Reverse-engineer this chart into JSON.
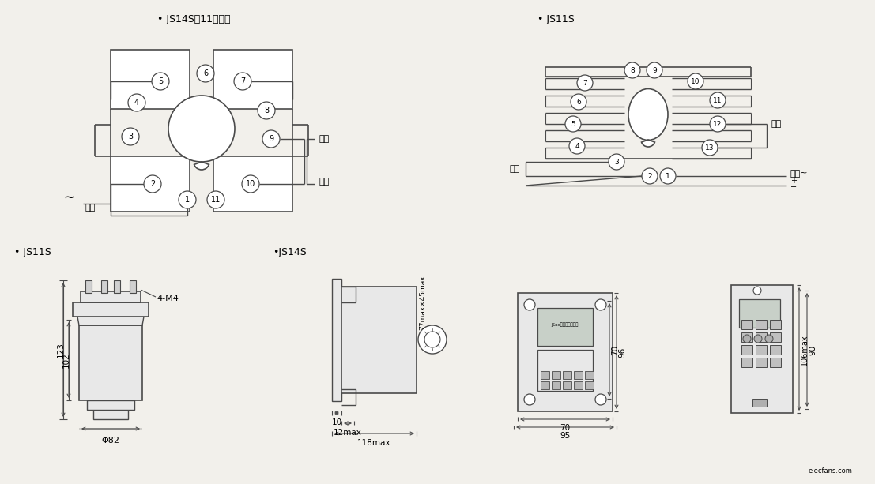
{
  "bg_color": "#f2f0eb",
  "lc": "#4a4a4a",
  "title_js14s_11": "• JS14S（11端子）",
  "title_js11s_tr": "• JS11S",
  "title_js11s_bl": "• JS11S",
  "title_js14s_bc": "•JS14S",
  "label_power": "电源",
  "label_reset": "复零",
  "label_pause": "暂停",
  "label_instant": "瞬动",
  "label_power_r": "电源≃",
  "label_4m4": "4-M4",
  "label_phi82": "Φ82",
  "label_123": "123",
  "label_102": "102",
  "label_12max": "12max",
  "label_118max": "118max",
  "label_10": "10",
  "label_77max": "77max×45max",
  "label_96": "96",
  "label_70h": "70",
  "label_70w": "70",
  "label_95": "95",
  "label_106max": "106max",
  "label_90": "90",
  "label_tilde": "∼",
  "label_plus": "+",
  "label_minus": "−"
}
